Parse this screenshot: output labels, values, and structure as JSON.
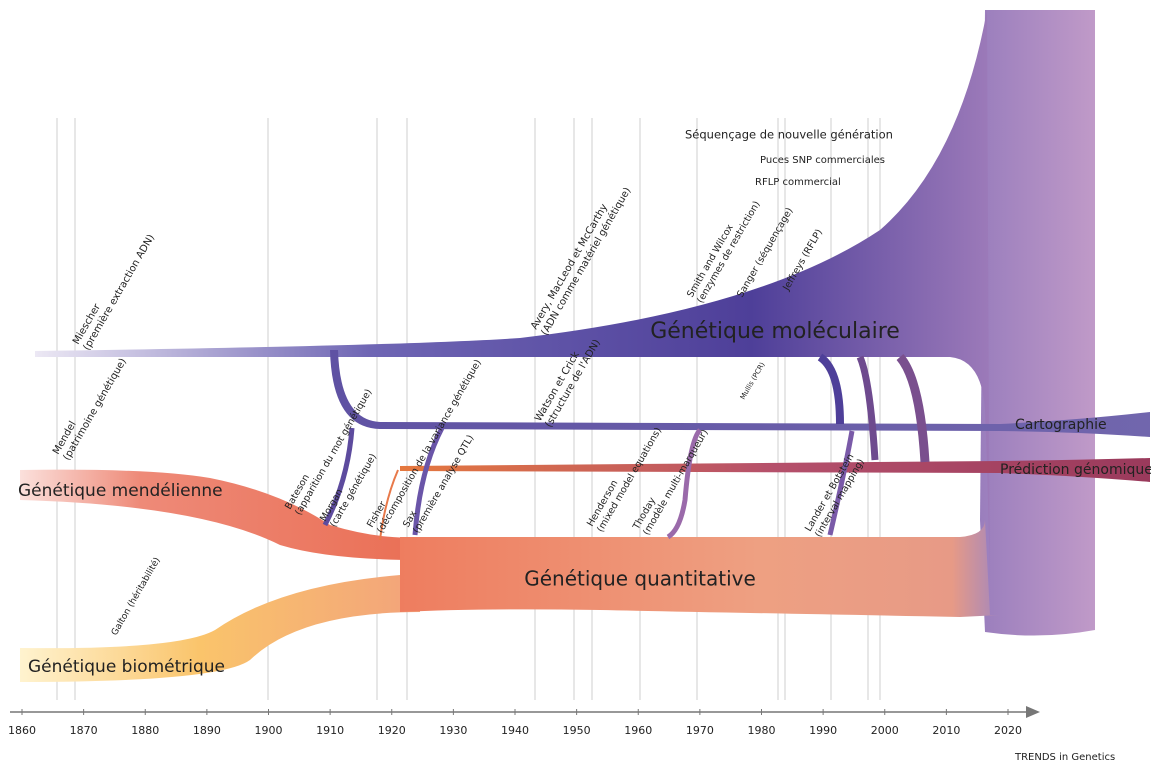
{
  "axis": {
    "ticks": [
      1860,
      1870,
      1880,
      1890,
      1900,
      1910,
      1920,
      1930,
      1940,
      1950,
      1960,
      1970,
      1980,
      1990,
      2000,
      2010,
      2020
    ]
  },
  "streams": [
    "Génétique moléculaire",
    "Cartographie",
    "Prédiction génomique",
    "Génétique mendélienne",
    "Génétique quantitative",
    "Génétique biométrique"
  ],
  "events": [
    {
      "name": "Miescher",
      "detail": "(première extraction ADN)"
    },
    {
      "name": "Mendel",
      "detail": "(patrimoine génétique)"
    },
    {
      "name": "Galton (héritabilité)"
    },
    {
      "name": "Bateson",
      "detail": "(apparition du mot génétique)"
    },
    {
      "name": "Morgan",
      "detail": "(carte génétique)"
    },
    {
      "name": "Fisher",
      "detail": "(décomposition de la variance génétique)"
    },
    {
      "name": "Sax",
      "detail": "(première analyse QTL)"
    },
    {
      "name": "Avery, MacLeod et McCarthy",
      "detail": "(ADN comme matériel génétique)"
    },
    {
      "name": "Watson et Crick",
      "detail": "(structure de l'ADN)"
    },
    {
      "name": "Henderson",
      "detail": "(mixed model equations)"
    },
    {
      "name": "Thoday",
      "detail": "(modèle multi-marqueur)"
    },
    {
      "name": "Smith and Wilcox",
      "detail": "(enzymes de restriction)"
    },
    {
      "name": "Sanger (séquençage)"
    },
    {
      "name": "Jeffreys (RFLP)"
    },
    {
      "name": "Mullis (PCR)"
    },
    {
      "name": "Lander et Botstein",
      "detail": "(interval mapping)"
    }
  ],
  "milestones": [
    "Séquençage de nouvelle génération",
    "Puces SNP commerciales",
    "RFLP commercial"
  ],
  "credit": "TRENDS in Genetics"
}
